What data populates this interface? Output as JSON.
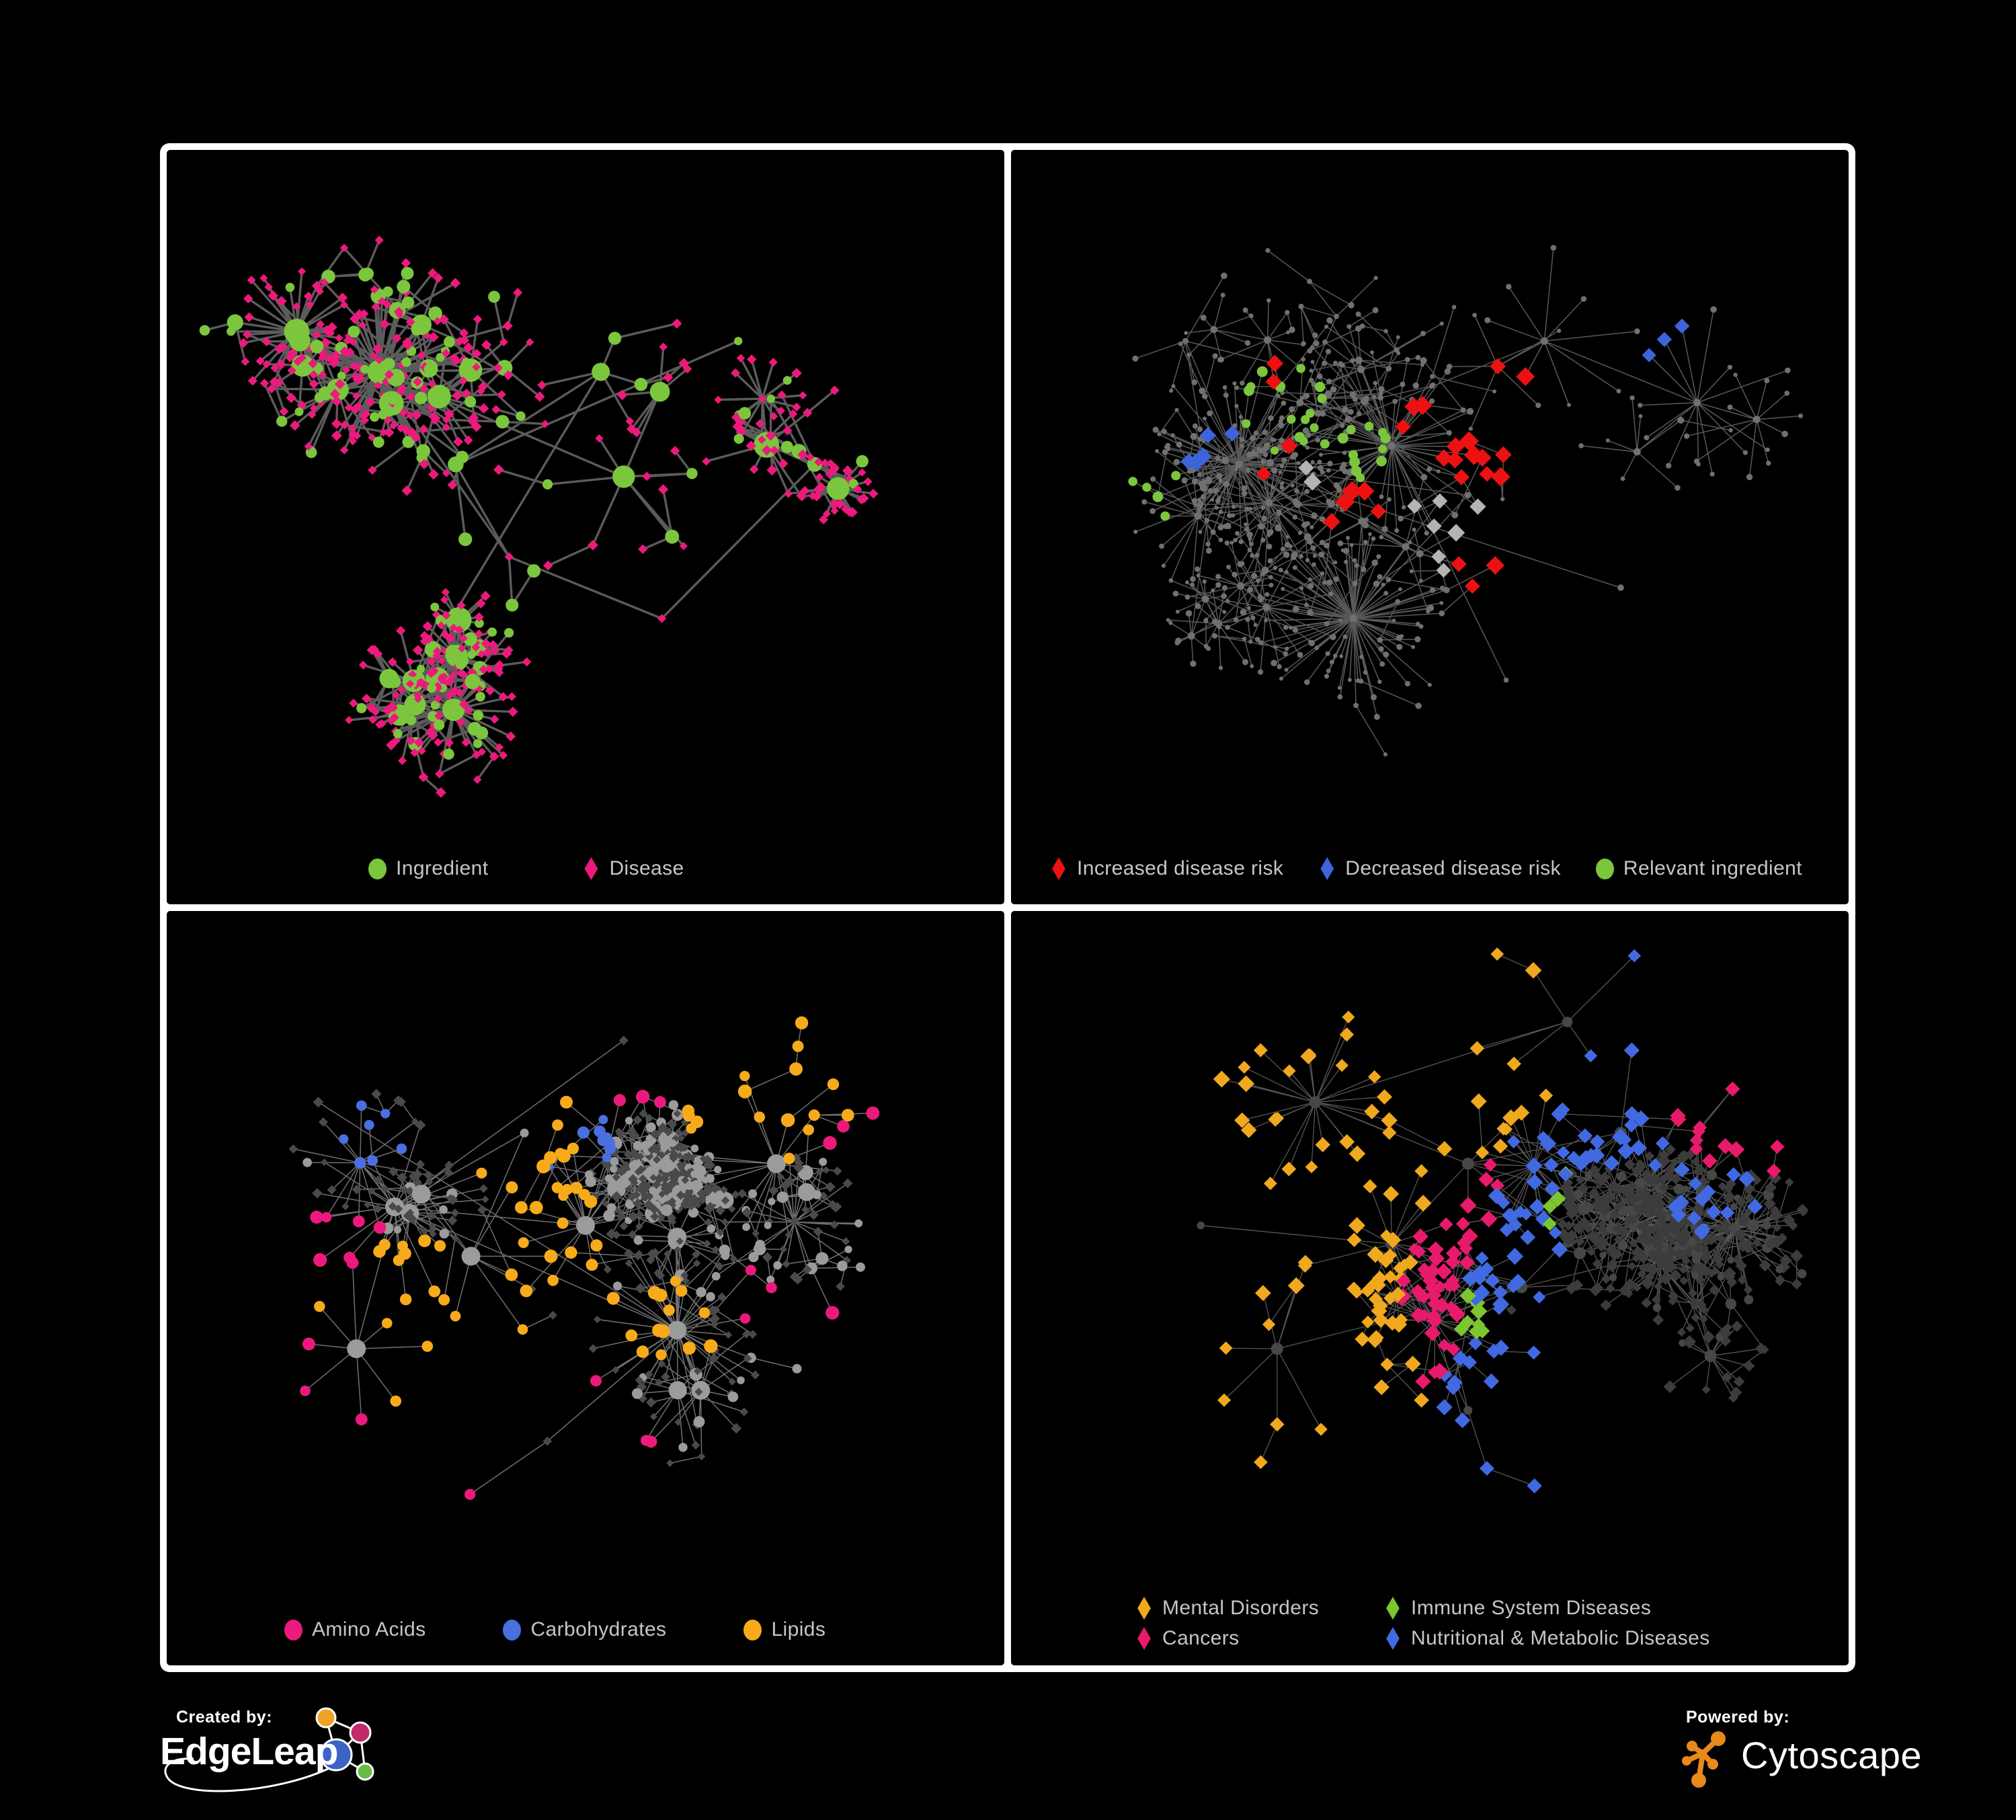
{
  "canvas": {
    "background": "#000000",
    "frame_color": "#ffffff"
  },
  "panels": [
    {
      "id": "ingredient-disease",
      "legend": {
        "items": [
          {
            "label": "Ingredient",
            "shape": "circle",
            "color": "#7CC63E"
          },
          {
            "label": "Disease",
            "shape": "diamond",
            "color": "#EC1A7C"
          }
        ]
      },
      "network": {
        "seed": 42,
        "nodes": 560,
        "burst_p": 0.15,
        "step": 95,
        "hub_style": 0,
        "hub_pos": [
          [
            0.33,
            0.45
          ],
          [
            0.52,
            0.3
          ],
          [
            0.4,
            0.6
          ],
          [
            0.6,
            0.7
          ],
          [
            0.23,
            0.3
          ],
          [
            0.7,
            0.25
          ],
          [
            0.8,
            0.45
          ],
          [
            0.3,
            0.75
          ],
          [
            0.55,
            0.47
          ]
        ],
        "edge": {
          "color": "#6B6B6B",
          "width": 3.4,
          "opacity": 0.85
        },
        "base": [
          {
            "shape": "circle",
            "color": "#7CC63E",
            "rmin": 5,
            "rmax": 9,
            "weight": 0.36,
            "degree_scale": 1.1,
            "rcap": 19
          },
          {
            "shape": "diamond",
            "color": "#EC1A7C",
            "rmin": 6,
            "rmax": 8,
            "weight": 0.64
          }
        ],
        "overlays": []
      }
    },
    {
      "id": "disease-risk",
      "legend": {
        "items": [
          {
            "label": "Increased disease risk",
            "shape": "diamond",
            "color": "#EE1111"
          },
          {
            "label": "Decreased disease risk",
            "shape": "diamond",
            "color": "#3E64DC"
          },
          {
            "label": "Relevant ingredient",
            "shape": "circle",
            "color": "#7CC63E"
          }
        ]
      },
      "network": {
        "seed": 7,
        "nodes": 650,
        "burst_p": 0.17,
        "step": 105,
        "hub_style": null,
        "hub_pos": [
          [
            0.33,
            0.35
          ],
          [
            0.45,
            0.42
          ],
          [
            0.25,
            0.45
          ],
          [
            0.55,
            0.5
          ],
          [
            0.65,
            0.25
          ],
          [
            0.18,
            0.25
          ],
          [
            0.75,
            0.65
          ],
          [
            0.4,
            0.7
          ],
          [
            0.6,
            0.8
          ],
          [
            0.85,
            0.35
          ]
        ],
        "edge": {
          "color": "#6E6E6E",
          "width": 1.5,
          "opacity": 0.8
        },
        "base": [
          {
            "shape": "circle",
            "color": "#707070",
            "rmin": 2.5,
            "rmax": 4.5,
            "weight": 1,
            "degree_scale": 0.35,
            "rcap": 5.5
          }
        ],
        "overlays": [
          {
            "shape": "diamond",
            "color": "#EE1111",
            "size": 13,
            "count": 27,
            "spread": 0.05,
            "centers": [
              [
                0.33,
                0.3
              ],
              [
                0.46,
                0.4
              ],
              [
                0.4,
                0.52
              ],
              [
                0.56,
                0.46
              ],
              [
                0.3,
                0.44
              ],
              [
                0.68,
                0.72
              ],
              [
                0.62,
                0.3
              ]
            ]
          },
          {
            "shape": "diamond",
            "color": "#3E64DC",
            "size": 12,
            "count": 8,
            "spread": 0.03,
            "centers": [
              [
                0.2,
                0.44
              ],
              [
                0.83,
                0.27
              ],
              [
                0.22,
                0.4
              ]
            ]
          },
          {
            "shape": "diamond",
            "color": "#B4B4B4",
            "size": 12,
            "count": 9,
            "spread": 0.05,
            "centers": [
              [
                0.33,
                0.46
              ],
              [
                0.52,
                0.52
              ],
              [
                0.56,
                0.6
              ]
            ]
          },
          {
            "shape": "circle",
            "color": "#7CC63E",
            "size": 7,
            "count": 32,
            "spread": 0.07,
            "centers": [
              [
                0.29,
                0.33
              ],
              [
                0.43,
                0.43
              ],
              [
                0.15,
                0.5
              ],
              [
                0.36,
                0.38
              ]
            ]
          }
        ]
      }
    },
    {
      "id": "nutrient-classes",
      "legend": {
        "items": [
          {
            "label": "Amino Acids",
            "shape": "circle",
            "color": "#EC1A7C"
          },
          {
            "label": "Carbohydrates",
            "shape": "circle",
            "color": "#4A6FE0"
          },
          {
            "label": "Lipids",
            "shape": "circle",
            "color": "#F7AB1B"
          }
        ]
      },
      "network": {
        "seed": 1337,
        "nodes": 620,
        "burst_p": 0.16,
        "step": 100,
        "hub_style": 0,
        "hub_pos": [
          [
            0.42,
            0.3
          ],
          [
            0.35,
            0.5
          ],
          [
            0.25,
            0.42
          ],
          [
            0.5,
            0.45
          ],
          [
            0.62,
            0.62
          ],
          [
            0.2,
            0.65
          ],
          [
            0.55,
            0.15
          ],
          [
            0.75,
            0.35
          ],
          [
            0.45,
            0.8
          ],
          [
            0.15,
            0.25
          ]
        ],
        "edge": {
          "color": "#ABABAB",
          "width": 1.5,
          "opacity": 0.65
        },
        "base": [
          {
            "shape": "circle",
            "color": "#9B9B9B",
            "rmin": 4.5,
            "rmax": 8,
            "weight": 0.45,
            "degree_scale": 0.9,
            "rcap": 14
          },
          {
            "shape": "diamond",
            "color": "#4A4A4A",
            "rmin": 5.5,
            "rmax": 8,
            "weight": 0.55
          }
        ],
        "overlays": [
          {
            "shape": "circle",
            "color": "#F7AB1B",
            "size": 9,
            "count": 72,
            "spread": 0.07,
            "centers": [
              [
                0.42,
                0.27
              ],
              [
                0.45,
                0.47
              ],
              [
                0.6,
                0.6
              ],
              [
                0.28,
                0.6
              ],
              [
                0.75,
                0.2
              ]
            ]
          },
          {
            "shape": "circle",
            "color": "#4A6FE0",
            "size": 8,
            "count": 16,
            "spread": 0.05,
            "centers": [
              [
                0.5,
                0.3
              ],
              [
                0.22,
                0.28
              ]
            ]
          },
          {
            "shape": "circle",
            "color": "#EC1A7C",
            "size": 9,
            "count": 24,
            "spread": 0.12,
            "centers": [
              [
                0.14,
                0.52
              ],
              [
                0.72,
                0.55
              ],
              [
                0.46,
                0.88
              ],
              [
                0.88,
                0.25
              ],
              [
                0.52,
                0.06
              ],
              [
                0.3,
                0.9
              ]
            ]
          }
        ]
      }
    },
    {
      "id": "disease-categories",
      "legend": {
        "items": [
          {
            "label": "Mental Disorders",
            "shape": "diamond",
            "color": "#F0A81F"
          },
          {
            "label": "Immune System Diseases",
            "shape": "diamond",
            "color": "#7CC62F"
          },
          {
            "label": "Cancers",
            "shape": "diamond",
            "color": "#E81A6C"
          },
          {
            "label": "Nutritional & Metabolic Diseases",
            "shape": "diamond",
            "color": "#4169E1"
          }
        ]
      },
      "network": {
        "seed": 2024,
        "nodes": 680,
        "burst_p": 0.15,
        "step": 100,
        "hub_style": 1,
        "hub_pos": [
          [
            0.2,
            0.45
          ],
          [
            0.45,
            0.48
          ],
          [
            0.55,
            0.35
          ],
          [
            0.62,
            0.55
          ],
          [
            0.35,
            0.25
          ],
          [
            0.75,
            0.3
          ],
          [
            0.3,
            0.65
          ],
          [
            0.85,
            0.45
          ],
          [
            0.55,
            0.75
          ],
          [
            0.68,
            0.12
          ]
        ],
        "edge": {
          "color": "#8F8F8F",
          "width": 1.3,
          "opacity": 0.6
        },
        "base": [
          {
            "shape": "diamond",
            "color": "#3C3C3C",
            "rmin": 6.5,
            "rmax": 10,
            "weight": 0.8
          },
          {
            "shape": "circle",
            "color": "#474747",
            "rmin": 4.5,
            "rmax": 7,
            "weight": 0.2,
            "degree_scale": 0.5,
            "rcap": 9
          }
        ],
        "overlays": [
          {
            "shape": "diamond",
            "color": "#F0A81F",
            "size": 11,
            "count": 88,
            "spread": 0.05,
            "centers": [
              [
                0.17,
                0.42
              ],
              [
                0.2,
                0.48
              ],
              [
                0.22,
                0.38
              ],
              [
                0.45,
                0.08
              ],
              [
                0.33,
                0.72
              ]
            ]
          },
          {
            "shape": "diamond",
            "color": "#E81A6C",
            "size": 11,
            "count": 62,
            "spread": 0.06,
            "centers": [
              [
                0.44,
                0.5
              ],
              [
                0.5,
                0.4
              ],
              [
                0.4,
                0.58
              ],
              [
                0.93,
                0.22
              ]
            ]
          },
          {
            "shape": "diamond",
            "color": "#4169E1",
            "size": 11,
            "count": 92,
            "spread": 0.09,
            "centers": [
              [
                0.6,
                0.52
              ],
              [
                0.74,
                0.28
              ],
              [
                0.86,
                0.42
              ],
              [
                0.3,
                0.12
              ],
              [
                0.62,
                0.78
              ],
              [
                0.7,
                0.12
              ]
            ]
          },
          {
            "shape": "diamond",
            "color": "#7CC62F",
            "size": 11,
            "count": 12,
            "spread": 0.12,
            "centers": [
              [
                0.42,
                0.38
              ],
              [
                0.35,
                0.55
              ]
            ]
          }
        ]
      }
    }
  ],
  "footer": {
    "created_by": {
      "label": "Created by:",
      "brand": "EdgeLeap"
    },
    "powered_by": {
      "label": "Powered by:",
      "brand": "Cytoscape"
    },
    "logos": {
      "edgeleap": {
        "node_colors": [
          "#EFA224",
          "#C22A6C",
          "#3D63C6",
          "#67BD44"
        ],
        "stroke": "#FFFFFF"
      },
      "cytoscape": {
        "color": "#E8891B"
      }
    }
  }
}
